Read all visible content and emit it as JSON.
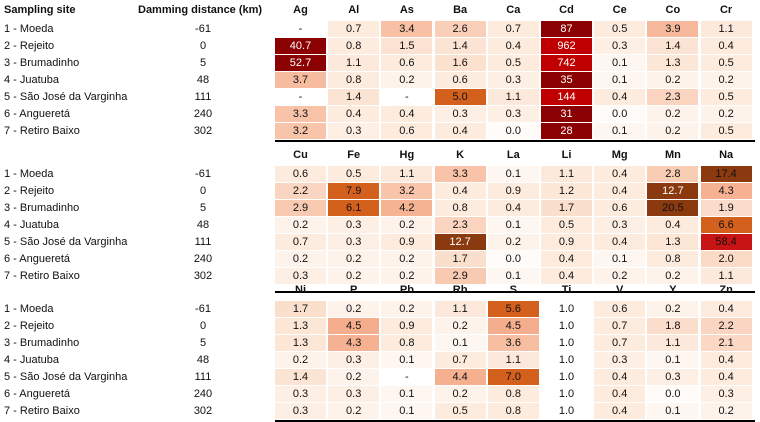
{
  "header": {
    "site_label": "Sampling site",
    "dist_label": "Damming distance (km)"
  },
  "sites": [
    "1 - Moeda",
    "2 - Rejeito",
    "3 - Brumadinho",
    "4 - Juatuba",
    "5 - São José da Varginha",
    "6 - Angueretá",
    "7 - Retiro Baixo"
  ],
  "distances": [
    "-61",
    "0",
    "5",
    "48",
    "111",
    "240",
    "302"
  ],
  "chart_data": {
    "type": "heatmap",
    "title": "",
    "row_labels": [
      "1 - Moeda",
      "2 - Rejeito",
      "3 - Brumadinho",
      "4 - Juatuba",
      "5 - São José da Varginha",
      "6 - Angueretá",
      "7 - Retiro Baixo"
    ],
    "blocks": [
      {
        "elements": [
          "Ag",
          "Al",
          "As",
          "Ba",
          "Ca",
          "Cd",
          "Ce",
          "Co",
          "Cr"
        ],
        "values": [
          [
            "-",
            "0.7",
            "3.4",
            "2.6",
            "0.7",
            "87",
            "0.5",
            "3.9",
            "1.1"
          ],
          [
            "40.7",
            "0.8",
            "1.5",
            "1.4",
            "0.4",
            "962",
            "0.3",
            "1.4",
            "0.4"
          ],
          [
            "52.7",
            "1.1",
            "0.6",
            "1.6",
            "0.5",
            "742",
            "0.1",
            "1.3",
            "0.5"
          ],
          [
            "3.7",
            "0.8",
            "0.2",
            "0.6",
            "0.3",
            "35",
            "0.1",
            "0.2",
            "0.2"
          ],
          [
            "-",
            "1.4",
            "-",
            "5.0",
            "1.1",
            "144",
            "0.4",
            "2.3",
            "0.5"
          ],
          [
            "3.3",
            "0.4",
            "0.4",
            "0.3",
            "0.3",
            "31",
            "0.0",
            "0.2",
            "0.2"
          ],
          [
            "3.2",
            "0.3",
            "0.6",
            "0.4",
            "0.0",
            "28",
            "0.1",
            "0.2",
            "0.5"
          ]
        ]
      },
      {
        "elements": [
          "Cu",
          "Fe",
          "Hg",
          "K",
          "La",
          "Li",
          "Mg",
          "Mn",
          "Na"
        ],
        "values": [
          [
            "0.6",
            "0.5",
            "1.1",
            "3.3",
            "0.1",
            "1.1",
            "0.4",
            "2.8",
            "17.4"
          ],
          [
            "2.2",
            "7.9",
            "3.2",
            "0.4",
            "0.9",
            "1.2",
            "0.4",
            "12.7",
            "4.3"
          ],
          [
            "2.9",
            "6.1",
            "4.2",
            "0.8",
            "0.4",
            "1.7",
            "0.6",
            "20.5",
            "1.9"
          ],
          [
            "0.2",
            "0.3",
            "0.2",
            "2.3",
            "0.1",
            "0.5",
            "0.3",
            "0.4",
            "6.6"
          ],
          [
            "0.7",
            "0.3",
            "0.9",
            "12.7",
            "0.2",
            "0.9",
            "0.4",
            "1.3",
            "58.4"
          ],
          [
            "0.2",
            "0.2",
            "0.2",
            "1.7",
            "0.0",
            "0.4",
            "0.1",
            "0.8",
            "2.0"
          ],
          [
            "0.3",
            "0.2",
            "0.2",
            "2.9",
            "0.1",
            "0.4",
            "0.2",
            "0.2",
            "1.1"
          ]
        ]
      },
      {
        "elements": [
          "Ni",
          "P",
          "Pb",
          "Rb",
          "S",
          "Ti",
          "V",
          "Y",
          "Zn"
        ],
        "values": [
          [
            "1.7",
            "0.2",
            "0.2",
            "1.1",
            "5.6",
            "1.0",
            "0.6",
            "0.2",
            "0.4"
          ],
          [
            "1.3",
            "4.5",
            "0.9",
            "0.2",
            "4.5",
            "1.0",
            "0.7",
            "1.8",
            "2.2"
          ],
          [
            "1.3",
            "4.3",
            "0.8",
            "0.1",
            "3.6",
            "1.0",
            "0.7",
            "1.1",
            "2.1"
          ],
          [
            "0.2",
            "0.3",
            "0.1",
            "0.7",
            "1.1",
            "1.0",
            "0.3",
            "0.1",
            "0.4"
          ],
          [
            "1.4",
            "0.2",
            "-",
            "4.4",
            "7.0",
            "1.0",
            "0.4",
            "0.3",
            "0.4"
          ],
          [
            "0.3",
            "0.3",
            "0.1",
            "0.2",
            "0.8",
            "1.0",
            "0.4",
            "0.0",
            "0.3"
          ],
          [
            "0.3",
            "0.2",
            "0.1",
            "0.5",
            "0.8",
            "1.0",
            "0.4",
            "0.1",
            "0.2"
          ]
        ]
      }
    ],
    "colors": {
      "scale_light": "#fdebdd",
      "scale_mid": "#f4a582",
      "scale_orange": "#d4601e",
      "scale_brown": "#8b3a10",
      "scale_red": "#c81414",
      "cd_red": "#c00000",
      "cd_dark": "#8b0000",
      "blank": "#ffffff"
    }
  }
}
